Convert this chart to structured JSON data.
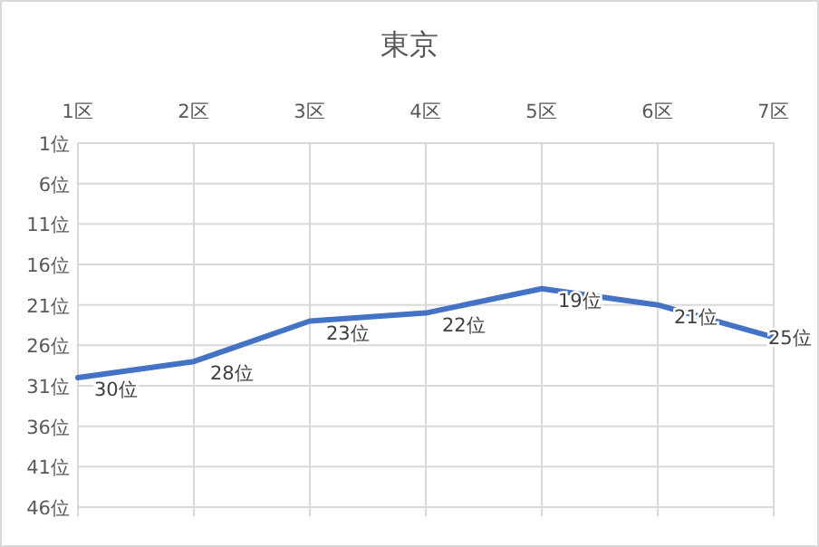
{
  "chart_data": {
    "type": "line",
    "title": "東京",
    "categories": [
      "1区",
      "2区",
      "3区",
      "4区",
      "5区",
      "6区",
      "7区"
    ],
    "series": [
      {
        "color": "#4472c4",
        "values": [
          30,
          28,
          23,
          22,
          19,
          21,
          25
        ],
        "value_labels": [
          "30位",
          "28位",
          "23位",
          "22位",
          "19位",
          "21位",
          "25位"
        ]
      }
    ],
    "ylim": [
      46,
      1
    ],
    "yticks": [
      {
        "value": 1,
        "label": "1位"
      },
      {
        "value": 6,
        "label": "6位"
      },
      {
        "value": 11,
        "label": "11位"
      },
      {
        "value": 16,
        "label": "16位"
      },
      {
        "value": 21,
        "label": "21位"
      },
      {
        "value": 26,
        "label": "26位"
      },
      {
        "value": 31,
        "label": "31位"
      },
      {
        "value": 36,
        "label": "36位"
      },
      {
        "value": 41,
        "label": "41位"
      },
      {
        "value": 46,
        "label": "46位"
      }
    ],
    "grid": true,
    "marker": "none",
    "line_style": "solid"
  }
}
